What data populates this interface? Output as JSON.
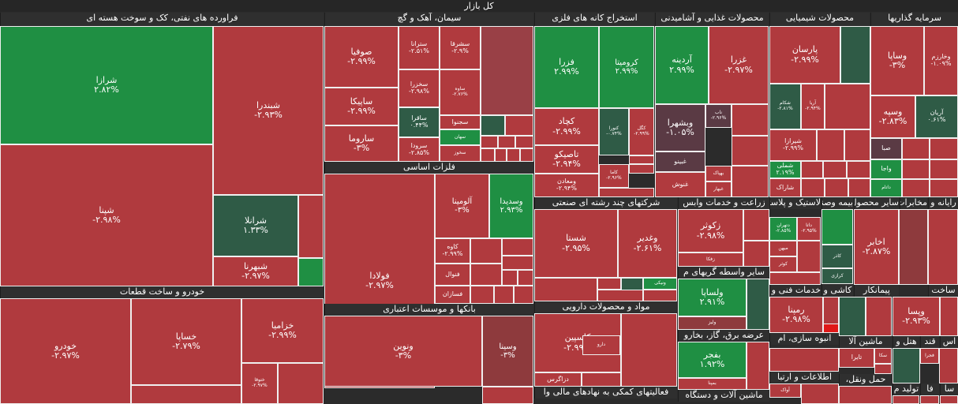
{
  "title": "کل بازار",
  "colors": {
    "red": "#b03a3e",
    "red2": "#a8373b",
    "redDark": "#8e3a3d",
    "redMid": "#994046",
    "green": "#1f8f43",
    "green2": "#2a7a45",
    "greenDark": "#2f5b46",
    "grayRed": "#5a3a44",
    "brightRed": "#e01818"
  },
  "sectors": [
    {
      "name": "فراورده های نفتی، کک و سوخت هسته ای"
    },
    {
      "name": "سیمان، آهک و گچ"
    },
    {
      "name": "استخراج کانه های فلزی"
    },
    {
      "name": "محصولات غذایی و آشامیدنی"
    },
    {
      "name": "محصولات شیمیایی"
    },
    {
      "name": "سرمایه گذاریها"
    },
    {
      "name": "فلزات اساسی"
    },
    {
      "name": "شرکتهای چند رشته ای صنعتی"
    },
    {
      "name": "زراعت و خدمات وابس"
    },
    {
      "name": "لاستیک و پلاستیک"
    },
    {
      "name": "بیمه وصندوق"
    },
    {
      "name": "سایر محصول"
    },
    {
      "name": "مخابرات"
    },
    {
      "name": "رایانه و"
    },
    {
      "name": "خودرو و ساخت قطعات"
    },
    {
      "name": "بانکها و موسسات اعتباری"
    },
    {
      "name": "مواد و محصولات دارویی"
    },
    {
      "name": "سایر واسطه گریهای م"
    },
    {
      "name": "خدمات فنی و م"
    },
    {
      "name": "کاشی و"
    },
    {
      "name": "پیمانکار"
    },
    {
      "name": "ساخت"
    },
    {
      "name": "عرضه برق، گاز، بخارو"
    },
    {
      "name": "انبوه سازی، ام"
    },
    {
      "name": "ماشین آلا"
    },
    {
      "name": "هتل و"
    },
    {
      "name": "قند"
    },
    {
      "name": "اس"
    },
    {
      "name": "اطلاعات و ارتبا"
    },
    {
      "name": "حمل ونقل،"
    },
    {
      "name": "فعالیتهای کمکی به نهادهای مالی وا"
    },
    {
      "name": "ماشین آلات و دستگاه"
    },
    {
      "name": "تولید م"
    },
    {
      "name": "فا"
    },
    {
      "name": "سا"
    }
  ],
  "tiles": [
    {
      "sym": "شرازا",
      "chg": "۲.۸۲%"
    },
    {
      "sym": "شبندرا",
      "chg": "-۲.۹۳%"
    },
    {
      "sym": "شپنا",
      "chg": "-۲.۹۸%"
    },
    {
      "sym": "شرانلا",
      "chg": "۱.۳۳%"
    },
    {
      "sym": "شبهرنا",
      "chg": "-۲.۹۷%"
    },
    {
      "sym": "صوفیا",
      "chg": "-۲.۹۹%"
    },
    {
      "sym": "ساپیکا",
      "chg": "-۲.۹۹%"
    },
    {
      "sym": "ساروما",
      "chg": "-۳%"
    },
    {
      "sym": "سترانا",
      "chg": "-۲.۵۱%"
    },
    {
      "sym": "سشرقا",
      "chg": "-۲.۹%"
    },
    {
      "sym": "سخزرا",
      "chg": "-۲.۹۸%"
    },
    {
      "sym": "ساوه",
      "chg": "-۲.۷۶%"
    },
    {
      "sym": "ساقرا",
      "chg": "۰.۴۴%"
    },
    {
      "sym": "سجنوا",
      "chg": ""
    },
    {
      "sym": "سرودا",
      "chg": "-۲.۸۵%"
    },
    {
      "sym": "سهان",
      "chg": ""
    },
    {
      "sym": "سخوز",
      "chg": ""
    },
    {
      "sym": "فولادا",
      "chg": "-۲.۹۷%"
    },
    {
      "sym": "فملیا",
      "chg": "-۲.۹۹%"
    },
    {
      "sym": "آلومینا",
      "chg": "-۳%"
    },
    {
      "sym": "وسدیدا",
      "chg": "۲.۹۳%"
    },
    {
      "sym": "کاوه",
      "chg": "-۲.۹۹%"
    },
    {
      "sym": "فنوال",
      "chg": ""
    },
    {
      "sym": "فسازان",
      "chg": ""
    },
    {
      "sym": "فزرا",
      "chg": "۲.۹۹%"
    },
    {
      "sym": "کرومیتا",
      "chg": "۲.۹۹%"
    },
    {
      "sym": "کچاد",
      "chg": "-۲.۹۹%"
    },
    {
      "sym": "کنورا",
      "chg": "-۰.۷۴%"
    },
    {
      "sym": "کگل",
      "chg": "-۲.۹۹%"
    },
    {
      "sym": "تاصیکو",
      "chg": "-۲.۹۴%"
    },
    {
      "sym": "ومعادن",
      "chg": "-۲.۹۴%"
    },
    {
      "sym": "کاما",
      "chg": "-۲.۹۶%"
    },
    {
      "sym": "آردینه",
      "chg": "۲.۹۹%"
    },
    {
      "sym": "غزرا",
      "chg": "-۲.۹۷%"
    },
    {
      "sym": "وبشهرا",
      "chg": "-۱.۰۵%"
    },
    {
      "sym": "ناب",
      "chg": "-۲.۹۶%"
    },
    {
      "sym": "غبینو",
      "chg": ""
    },
    {
      "sym": "غنوش",
      "chg": ""
    },
    {
      "sym": "بهپاک",
      "chg": ""
    },
    {
      "sym": "غبهار",
      "chg": ""
    },
    {
      "sym": "پارسان",
      "chg": "-۲.۹۹%"
    },
    {
      "sym": "شکام",
      "chg": "-۲.۸۱%"
    },
    {
      "sym": "آریا",
      "chg": "-۲.۹۴%"
    },
    {
      "sym": "شیرازا",
      "chg": "-۲.۹۹%"
    },
    {
      "sym": "شملی",
      "chg": "۲.۱۹%"
    },
    {
      "sym": "شاراک",
      "chg": ""
    },
    {
      "sym": "وساپا",
      "chg": "-۳%"
    },
    {
      "sym": "وخارزم",
      "chg": "-۱.۰۹%"
    },
    {
      "sym": "وسپه",
      "chg": "-۲.۸۳%"
    },
    {
      "sym": "آریان",
      "chg": "۰.۶۱%"
    },
    {
      "sym": "صبا",
      "chg": ""
    },
    {
      "sym": "واجا",
      "chg": ""
    },
    {
      "sym": "داتام",
      "chg": ""
    },
    {
      "sym": "شستا",
      "chg": "-۲.۹۵%"
    },
    {
      "sym": "وغدیر",
      "chg": "-۲.۶۱%"
    },
    {
      "sym": "ونیکی",
      "chg": ""
    },
    {
      "sym": "زکوثر",
      "chg": "-۲.۹۸%"
    },
    {
      "sym": "زفکا",
      "chg": ""
    },
    {
      "sym": "دتهران",
      "chg": "-۲.۸۵%"
    },
    {
      "sym": "داتا",
      "chg": "-۲.۹۵%"
    },
    {
      "sym": "میهن",
      "chg": ""
    },
    {
      "sym": "کوثر",
      "chg": ""
    },
    {
      "sym": "کاذر",
      "chg": ""
    },
    {
      "sym": "کرازی",
      "chg": ""
    },
    {
      "sym": "اخابر",
      "chg": "-۲.۸۷%"
    },
    {
      "sym": "خودرو",
      "chg": "-۲.۹۷%"
    },
    {
      "sym": "خساپا",
      "chg": "-۲.۷۹%"
    },
    {
      "sym": "خزامیا",
      "chg": "-۲.۹۹%"
    },
    {
      "sym": "ختوقا",
      "chg": "-۲.۹۷%"
    },
    {
      "sym": "ونوین",
      "chg": "-۳%"
    },
    {
      "sym": "وسینا",
      "chg": "-۳%"
    },
    {
      "sym": "کاسپین",
      "chg": "-۲.۹۹%"
    },
    {
      "sym": "دارو",
      "chg": ""
    },
    {
      "sym": "دزاگرس",
      "chg": ""
    },
    {
      "sym": "ولساپا",
      "chg": "۲.۹۱%"
    },
    {
      "sym": "ولیز",
      "chg": ""
    },
    {
      "sym": "رمپنا",
      "chg": "-۲.۹۸%"
    },
    {
      "sym": "وپسا",
      "chg": "-۲.۹۳%"
    },
    {
      "sym": "بفجر",
      "chg": "۱.۹۲%"
    },
    {
      "sym": "بمپنا",
      "chg": ""
    },
    {
      "sym": "تایرا",
      "chg": ""
    },
    {
      "sym": "سکا",
      "chg": ""
    },
    {
      "sym": "فجرا",
      "chg": ""
    },
    {
      "sym": "آواک",
      "chg": ""
    }
  ]
}
